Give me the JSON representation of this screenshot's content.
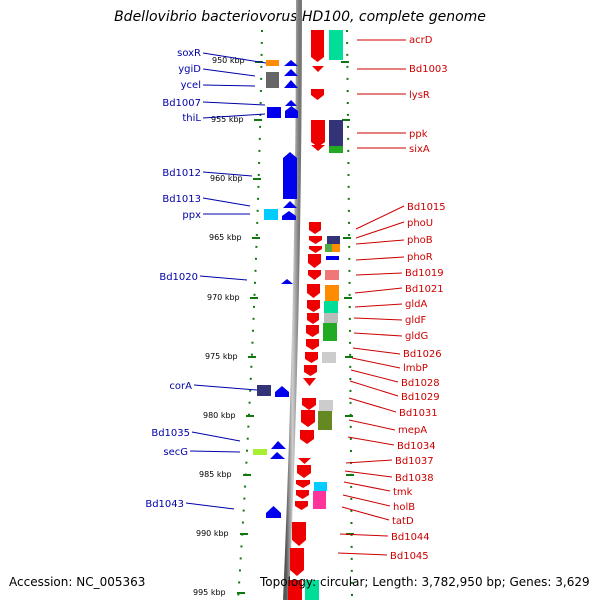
{
  "title": "Bdellovibrio bacteriovorus HD100, complete genome",
  "footer": {
    "accession": "Accession: NC_005363",
    "topology": "Topology: circular; Length: 3,782,950 bp; Genes: 3,629"
  },
  "colors": {
    "forward_strand": "#0000ee",
    "reverse_strand": "#ee0000",
    "left_label": "#0000aa",
    "right_label": "#cc0000",
    "backbone": "#888888"
  },
  "tick_labels": [
    "950 kbp",
    "955 kbp",
    "960 kbp",
    "965 kbp",
    "970 kbp",
    "975 kbp",
    "980 kbp",
    "985 kbp",
    "990 kbp",
    "995 kbp"
  ],
  "left_genes": [
    "soxR",
    "ygiD",
    "ycel",
    "Bd1007",
    "thiL",
    "Bd1012",
    "Bd1013",
    "ppx",
    "Bd1020",
    "corA",
    "Bd1035",
    "secG",
    "Bd1043"
  ],
  "right_genes": [
    "acrD",
    "Bd1003",
    "lysR",
    "ppk",
    "sixA",
    "Bd1015",
    "phoU",
    "phoB",
    "phoR",
    "Bd1019",
    "Bd1021",
    "gldA",
    "gldF",
    "gldG",
    "Bd1026",
    "lmbP",
    "Bd1028",
    "Bd1029",
    "Bd1031",
    "mepA",
    "Bd1034",
    "Bd1037",
    "Bd1038",
    "tmk",
    "holB",
    "tatD",
    "Bd1044",
    "Bd1045"
  ],
  "category_colors": [
    "#ff8c00",
    "#666666",
    "#00dd99",
    "#333377",
    "#22aa22",
    "#00ccff",
    "#ff3399",
    "#55aa44",
    "#ffd0d0",
    "#ee7777",
    "#aaee33",
    "#bbbbbb",
    "#668822",
    "#cccccc"
  ]
}
